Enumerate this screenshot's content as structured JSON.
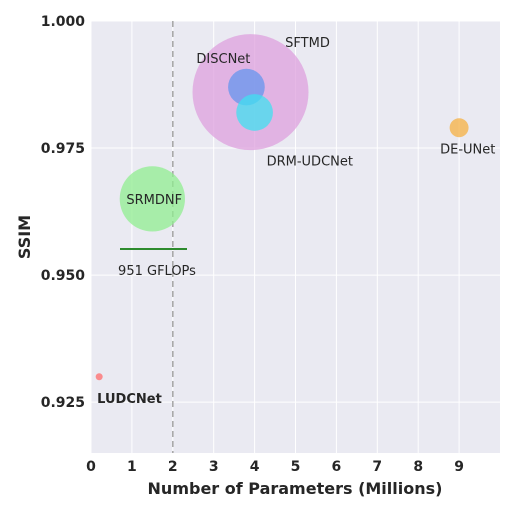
{
  "chart_data": {
    "type": "scatter",
    "title": "",
    "xlabel": "Number of Parameters (Millions)",
    "ylabel": "SSIM",
    "xlim": [
      0,
      10
    ],
    "ylim": [
      0.915,
      1.0
    ],
    "x_ticks": [
      "0",
      "1",
      "2",
      "3",
      "4",
      "5",
      "6",
      "7",
      "8",
      "9"
    ],
    "y_ticks": [
      "0.925",
      "0.950",
      "0.975",
      "1.000"
    ],
    "grid": true,
    "vline_x": 2,
    "points": [
      {
        "name": "SFTMD",
        "x": 3.9,
        "y": 0.986,
        "gflops": 6000,
        "color": "#DDA0DD",
        "bold": false
      },
      {
        "name": "DISCNet",
        "x": 3.8,
        "y": 0.987,
        "gflops": 600,
        "color": "#6495ED",
        "bold": false
      },
      {
        "name": "DRM-UDCNet",
        "x": 4.0,
        "y": 0.982,
        "gflops": 600,
        "color": "#40E0F0",
        "bold": false
      },
      {
        "name": "DE-UNet",
        "x": 9.0,
        "y": 0.979,
        "gflops": 160,
        "color": "#F5B041",
        "bold": false
      },
      {
        "name": "SRMDNF",
        "x": 1.5,
        "y": 0.965,
        "gflops": 1900,
        "color": "#90EE90",
        "bold": false
      },
      {
        "name": "LUDCNet",
        "x": 0.2,
        "y": 0.93,
        "gflops": 20,
        "color": "#FF6B6B",
        "bold": true
      }
    ],
    "size_legend": {
      "label": "951 GFLOPs",
      "color": "#2E8B2E"
    }
  }
}
